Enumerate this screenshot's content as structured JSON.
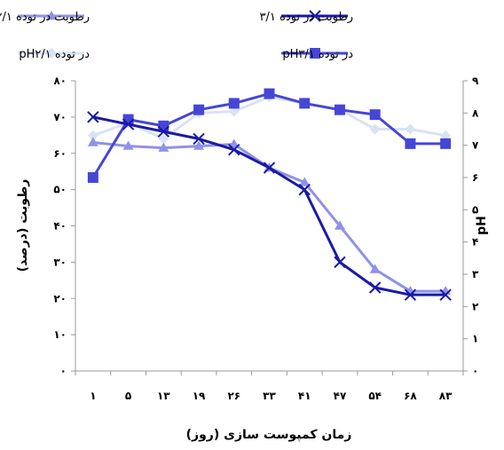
{
  "chart_data": {
    "type": "line",
    "title": "",
    "xlabel": "زمان کمپوست سازی (روز)",
    "ylabel_left": "رطوبت (درصد)",
    "ylabel_right": "pH",
    "categories": [
      "۱",
      "۵",
      "۱۳",
      "۱۹",
      "۲۶",
      "۳۳",
      "۴۱",
      "۴۷",
      "۵۴",
      "۶۸",
      "۸۳"
    ],
    "y_left_ticks": [
      "۰",
      "۱۰",
      "۲۰",
      "۳۰",
      "۴۰",
      "۵۰",
      "۶۰",
      "۷۰",
      "۸۰"
    ],
    "y_right_ticks": [
      "۰",
      "۱",
      "۲",
      "۳",
      "۴",
      "۵",
      "۶",
      "۷",
      "۸",
      "۹"
    ],
    "ylim_left": [
      0,
      80
    ],
    "ylim_right": [
      0,
      9
    ],
    "grid": false,
    "legend_position": "top",
    "series": [
      {
        "name": "رطوبت در توده ۳/۱",
        "axis": "left",
        "marker": "x",
        "color": "#1a1aa8",
        "values": [
          70,
          68,
          66,
          64,
          61,
          56,
          50,
          30,
          23,
          21,
          21
        ]
      },
      {
        "name": "رطوبت در توده ۲/۱",
        "axis": "left",
        "marker": "triangle",
        "color": "#8f92e6",
        "values": [
          63,
          62,
          61.5,
          62,
          62.5,
          56,
          52,
          40,
          28,
          22,
          22
        ]
      },
      {
        "name": "pHدر توده ۳/۱",
        "axis": "right",
        "marker": "square",
        "color": "#4646d6",
        "values": [
          6,
          7.8,
          7.6,
          8.1,
          8.3,
          8.6,
          8.3,
          8.1,
          7.95,
          7.05,
          7.05
        ]
      },
      {
        "name": "pHدر توده ۲/۱",
        "axis": "right",
        "marker": "diamond",
        "color": "#d8e3f4",
        "values": [
          7.3,
          7.7,
          7.2,
          8.0,
          8.05,
          8.5,
          8.3,
          8.1,
          7.5,
          7.5,
          7.3
        ]
      }
    ]
  }
}
